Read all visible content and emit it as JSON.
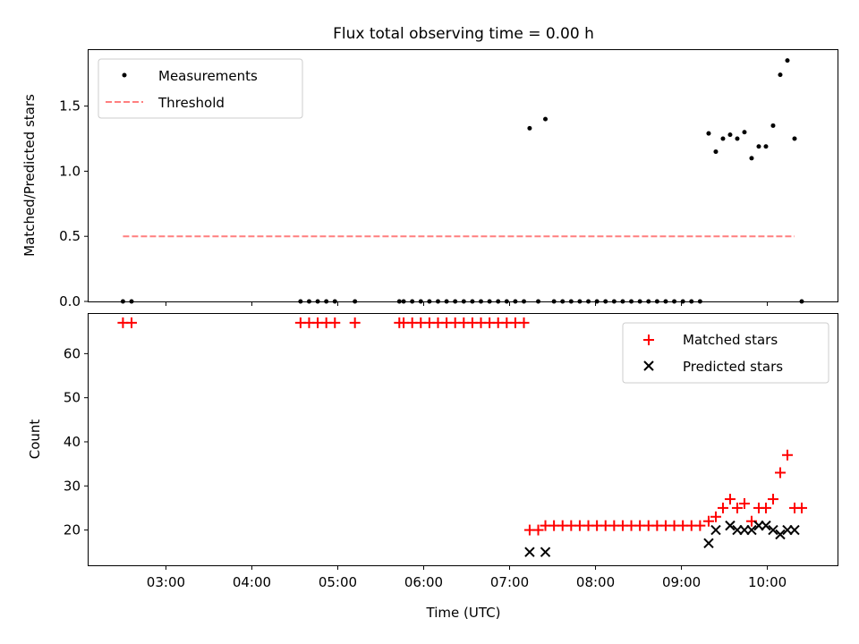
{
  "chart_data": [
    {
      "type": "scatter",
      "title": "Flux total observing time = 0.00 h",
      "xlabel": "",
      "ylabel": "Matched/Predicted stars",
      "xlim": [
        "02:06",
        "10:49"
      ],
      "ylim": [
        0.0,
        1.93
      ],
      "yticks": [
        0.0,
        0.5,
        1.0,
        1.5
      ],
      "ytick_labels": [
        "0.0",
        "0.5",
        "1.0",
        "1.5"
      ],
      "xticks": [
        "03:00",
        "04:00",
        "05:00",
        "06:00",
        "07:00",
        "08:00",
        "09:00",
        "10:00"
      ],
      "xtick_labels_visible": false,
      "legend_position": "top-left",
      "series": [
        {
          "name": "Measurements",
          "kind": "scatter",
          "marker": "dot",
          "color": "#000000",
          "points": [
            {
              "x": "02:30",
              "y": 0.0
            },
            {
              "x": "02:36",
              "y": 0.0
            },
            {
              "x": "04:34",
              "y": 0.0
            },
            {
              "x": "04:40",
              "y": 0.0
            },
            {
              "x": "04:46",
              "y": 0.0
            },
            {
              "x": "04:52",
              "y": 0.0
            },
            {
              "x": "04:58",
              "y": 0.0
            },
            {
              "x": "05:12",
              "y": 0.0
            },
            {
              "x": "05:43",
              "y": 0.0
            },
            {
              "x": "05:46",
              "y": 0.0
            },
            {
              "x": "05:52",
              "y": 0.0
            },
            {
              "x": "05:58",
              "y": 0.0
            },
            {
              "x": "06:04",
              "y": 0.0
            },
            {
              "x": "06:10",
              "y": 0.0
            },
            {
              "x": "06:16",
              "y": 0.0
            },
            {
              "x": "06:22",
              "y": 0.0
            },
            {
              "x": "06:28",
              "y": 0.0
            },
            {
              "x": "06:34",
              "y": 0.0
            },
            {
              "x": "06:40",
              "y": 0.0
            },
            {
              "x": "06:46",
              "y": 0.0
            },
            {
              "x": "06:52",
              "y": 0.0
            },
            {
              "x": "06:58",
              "y": 0.0
            },
            {
              "x": "07:04",
              "y": 0.0
            },
            {
              "x": "07:10",
              "y": 0.0
            },
            {
              "x": "07:14",
              "y": 1.33
            },
            {
              "x": "07:20",
              "y": 0.0
            },
            {
              "x": "07:25",
              "y": 1.4
            },
            {
              "x": "07:31",
              "y": 0.0
            },
            {
              "x": "07:37",
              "y": 0.0
            },
            {
              "x": "07:43",
              "y": 0.0
            },
            {
              "x": "07:49",
              "y": 0.0
            },
            {
              "x": "07:55",
              "y": 0.0
            },
            {
              "x": "08:01",
              "y": 0.0
            },
            {
              "x": "08:07",
              "y": 0.0
            },
            {
              "x": "08:13",
              "y": 0.0
            },
            {
              "x": "08:19",
              "y": 0.0
            },
            {
              "x": "08:25",
              "y": 0.0
            },
            {
              "x": "08:31",
              "y": 0.0
            },
            {
              "x": "08:37",
              "y": 0.0
            },
            {
              "x": "08:43",
              "y": 0.0
            },
            {
              "x": "08:49",
              "y": 0.0
            },
            {
              "x": "08:55",
              "y": 0.0
            },
            {
              "x": "09:01",
              "y": 0.0
            },
            {
              "x": "09:07",
              "y": 0.0
            },
            {
              "x": "09:13",
              "y": 0.0
            },
            {
              "x": "09:19",
              "y": 1.29
            },
            {
              "x": "09:24",
              "y": 1.15
            },
            {
              "x": "09:29",
              "y": 1.25
            },
            {
              "x": "09:34",
              "y": 1.28
            },
            {
              "x": "09:39",
              "y": 1.25
            },
            {
              "x": "09:44",
              "y": 1.3
            },
            {
              "x": "09:49",
              "y": 1.1
            },
            {
              "x": "09:54",
              "y": 1.19
            },
            {
              "x": "09:59",
              "y": 1.19
            },
            {
              "x": "10:04",
              "y": 1.35
            },
            {
              "x": "10:09",
              "y": 1.74
            },
            {
              "x": "10:14",
              "y": 1.85
            },
            {
              "x": "10:19",
              "y": 1.25
            },
            {
              "x": "10:24",
              "y": 0.0
            }
          ]
        },
        {
          "name": "Threshold",
          "kind": "line",
          "style": "dashed",
          "color": "#ff7f7f",
          "points": [
            {
              "x": "02:30",
              "y": 0.5
            },
            {
              "x": "10:19",
              "y": 0.5
            }
          ]
        }
      ]
    },
    {
      "type": "scatter",
      "title": "",
      "xlabel": "Time (UTC)",
      "ylabel": "Count",
      "xlim": [
        "02:06",
        "10:49"
      ],
      "ylim": [
        12,
        69
      ],
      "yticks": [
        20,
        30,
        40,
        50,
        60
      ],
      "ytick_labels": [
        "20",
        "30",
        "40",
        "50",
        "60"
      ],
      "xticks": [
        "03:00",
        "04:00",
        "05:00",
        "06:00",
        "07:00",
        "08:00",
        "09:00",
        "10:00"
      ],
      "xtick_labels": [
        "03:00",
        "04:00",
        "05:00",
        "06:00",
        "07:00",
        "08:00",
        "09:00",
        "10:00"
      ],
      "legend_position": "top-right",
      "series": [
        {
          "name": "Matched stars",
          "kind": "scatter",
          "marker": "plus",
          "color": "#ff0000",
          "points": [
            {
              "x": "02:30",
              "y": 67
            },
            {
              "x": "02:36",
              "y": 67
            },
            {
              "x": "04:34",
              "y": 67
            },
            {
              "x": "04:40",
              "y": 67
            },
            {
              "x": "04:46",
              "y": 67
            },
            {
              "x": "04:52",
              "y": 67
            },
            {
              "x": "04:58",
              "y": 67
            },
            {
              "x": "05:12",
              "y": 67
            },
            {
              "x": "05:43",
              "y": 67
            },
            {
              "x": "05:46",
              "y": 67
            },
            {
              "x": "05:52",
              "y": 67
            },
            {
              "x": "05:58",
              "y": 67
            },
            {
              "x": "06:04",
              "y": 67
            },
            {
              "x": "06:10",
              "y": 67
            },
            {
              "x": "06:16",
              "y": 67
            },
            {
              "x": "06:22",
              "y": 67
            },
            {
              "x": "06:28",
              "y": 67
            },
            {
              "x": "06:34",
              "y": 67
            },
            {
              "x": "06:40",
              "y": 67
            },
            {
              "x": "06:46",
              "y": 67
            },
            {
              "x": "06:52",
              "y": 67
            },
            {
              "x": "06:58",
              "y": 67
            },
            {
              "x": "07:04",
              "y": 67
            },
            {
              "x": "07:10",
              "y": 67
            },
            {
              "x": "07:14",
              "y": 20
            },
            {
              "x": "07:20",
              "y": 20
            },
            {
              "x": "07:25",
              "y": 21
            },
            {
              "x": "07:31",
              "y": 21
            },
            {
              "x": "07:37",
              "y": 21
            },
            {
              "x": "07:43",
              "y": 21
            },
            {
              "x": "07:49",
              "y": 21
            },
            {
              "x": "07:55",
              "y": 21
            },
            {
              "x": "08:01",
              "y": 21
            },
            {
              "x": "08:07",
              "y": 21
            },
            {
              "x": "08:13",
              "y": 21
            },
            {
              "x": "08:19",
              "y": 21
            },
            {
              "x": "08:25",
              "y": 21
            },
            {
              "x": "08:31",
              "y": 21
            },
            {
              "x": "08:37",
              "y": 21
            },
            {
              "x": "08:43",
              "y": 21
            },
            {
              "x": "08:49",
              "y": 21
            },
            {
              "x": "08:55",
              "y": 21
            },
            {
              "x": "09:01",
              "y": 21
            },
            {
              "x": "09:07",
              "y": 21
            },
            {
              "x": "09:13",
              "y": 21
            },
            {
              "x": "09:19",
              "y": 22
            },
            {
              "x": "09:24",
              "y": 23
            },
            {
              "x": "09:29",
              "y": 25
            },
            {
              "x": "09:34",
              "y": 27
            },
            {
              "x": "09:39",
              "y": 25
            },
            {
              "x": "09:44",
              "y": 26
            },
            {
              "x": "09:49",
              "y": 22
            },
            {
              "x": "09:54",
              "y": 25
            },
            {
              "x": "09:59",
              "y": 25
            },
            {
              "x": "10:04",
              "y": 27
            },
            {
              "x": "10:09",
              "y": 33
            },
            {
              "x": "10:14",
              "y": 37
            },
            {
              "x": "10:19",
              "y": 25
            },
            {
              "x": "10:24",
              "y": 25
            }
          ]
        },
        {
          "name": "Predicted stars",
          "kind": "scatter",
          "marker": "x",
          "color": "#000000",
          "points": [
            {
              "x": "07:14",
              "y": 15
            },
            {
              "x": "07:25",
              "y": 15
            },
            {
              "x": "09:19",
              "y": 17
            },
            {
              "x": "09:24",
              "y": 20
            },
            {
              "x": "09:34",
              "y": 21
            },
            {
              "x": "09:39",
              "y": 20
            },
            {
              "x": "09:44",
              "y": 20
            },
            {
              "x": "09:49",
              "y": 20
            },
            {
              "x": "09:54",
              "y": 21
            },
            {
              "x": "09:59",
              "y": 21
            },
            {
              "x": "10:04",
              "y": 20
            },
            {
              "x": "10:09",
              "y": 19
            },
            {
              "x": "10:14",
              "y": 20
            },
            {
              "x": "10:19",
              "y": 20
            }
          ]
        }
      ]
    }
  ]
}
